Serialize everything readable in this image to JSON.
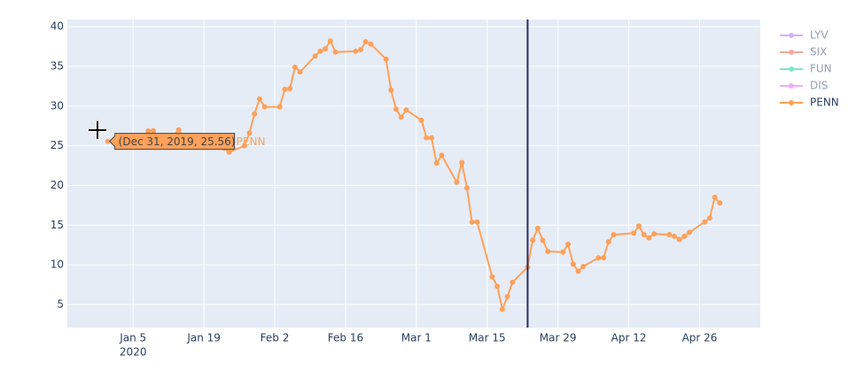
{
  "chart_data": {
    "type": "line",
    "x": [
      "2019-12-31",
      "2020-01-02",
      "2020-01-03",
      "2020-01-06",
      "2020-01-07",
      "2020-01-08",
      "2020-01-09",
      "2020-01-10",
      "2020-01-13",
      "2020-01-14",
      "2020-01-15",
      "2020-01-16",
      "2020-01-17",
      "2020-01-21",
      "2020-01-22",
      "2020-01-23",
      "2020-01-24",
      "2020-01-27",
      "2020-01-28",
      "2020-01-29",
      "2020-01-30",
      "2020-01-31",
      "2020-02-03",
      "2020-02-04",
      "2020-02-05",
      "2020-02-06",
      "2020-02-07",
      "2020-02-10",
      "2020-02-11",
      "2020-02-12",
      "2020-02-13",
      "2020-02-14",
      "2020-02-18",
      "2020-02-19",
      "2020-02-20",
      "2020-02-21",
      "2020-02-24",
      "2020-02-25",
      "2020-02-26",
      "2020-02-27",
      "2020-02-28",
      "2020-03-02",
      "2020-03-03",
      "2020-03-04",
      "2020-03-05",
      "2020-03-06",
      "2020-03-09",
      "2020-03-10",
      "2020-03-11",
      "2020-03-12",
      "2020-03-13",
      "2020-03-16",
      "2020-03-17",
      "2020-03-18",
      "2020-03-19",
      "2020-03-20",
      "2020-03-23",
      "2020-03-24",
      "2020-03-25",
      "2020-03-26",
      "2020-03-27",
      "2020-03-30",
      "2020-03-31",
      "2020-04-01",
      "2020-04-02",
      "2020-04-03",
      "2020-04-06",
      "2020-04-07",
      "2020-04-08",
      "2020-04-09",
      "2020-04-13",
      "2020-04-14",
      "2020-04-15",
      "2020-04-16",
      "2020-04-17",
      "2020-04-20",
      "2020-04-21",
      "2020-04-22",
      "2020-04-23",
      "2020-04-24",
      "2020-04-27",
      "2020-04-28",
      "2020-04-29",
      "2020-04-30"
    ],
    "series": [
      {
        "name": "LYV",
        "color": "#AB63FA",
        "visible": "legendonly"
      },
      {
        "name": "SIX",
        "color": "#EF553B",
        "visible": "legendonly"
      },
      {
        "name": "FUN",
        "color": "#00CC96",
        "visible": "legendonly"
      },
      {
        "name": "DIS",
        "color": "#D662FA",
        "visible": "legendonly"
      },
      {
        "name": "PENN",
        "color": "#FFA15A",
        "visible": true,
        "values": [
          25.56,
          25.9,
          25.4,
          25.8,
          26.2,
          26.85,
          26.9,
          26.0,
          26.3,
          27.0,
          26.0,
          25.7,
          25.4,
          25.0,
          24.9,
          24.7,
          24.2,
          25.0,
          26.6,
          29.0,
          30.9,
          29.9,
          29.9,
          32.1,
          32.2,
          34.9,
          34.3,
          36.3,
          36.9,
          37.2,
          38.2,
          36.8,
          36.9,
          37.1,
          38.1,
          37.8,
          35.9,
          32.0,
          29.6,
          28.6,
          29.5,
          28.2,
          26.0,
          26.0,
          22.8,
          23.8,
          20.4,
          22.9,
          19.7,
          15.4,
          15.4,
          8.5,
          7.3,
          4.4,
          6.0,
          7.8,
          9.7,
          13.1,
          14.6,
          13.1,
          11.7,
          11.6,
          12.6,
          10.1,
          9.2,
          9.8,
          10.9,
          10.9,
          12.9,
          13.8,
          14.0,
          14.9,
          13.8,
          13.4,
          13.9,
          13.8,
          13.6,
          13.2,
          13.6,
          14.1,
          15.4,
          15.9,
          18.5,
          17.8
        ]
      }
    ],
    "xlim": [
      "2019-12-23",
      "2020-05-08"
    ],
    "xticks": [
      {
        "value": "2020-01-05",
        "label": "Jan 5"
      },
      {
        "value": "2020-01-19",
        "label": "Jan 19"
      },
      {
        "value": "2020-02-02",
        "label": "Feb 2"
      },
      {
        "value": "2020-02-16",
        "label": "Feb 16"
      },
      {
        "value": "2020-03-01",
        "label": "Mar 1"
      },
      {
        "value": "2020-03-15",
        "label": "Mar 15"
      },
      {
        "value": "2020-03-29",
        "label": "Mar 29"
      },
      {
        "value": "2020-04-12",
        "label": "Apr 12"
      },
      {
        "value": "2020-04-26",
        "label": "Apr 26"
      }
    ],
    "x_year_label": "2020",
    "ylim": [
      2.1,
      40.9
    ],
    "yticks": [
      5,
      10,
      15,
      20,
      25,
      30,
      35,
      40
    ],
    "grid": true,
    "vline_x": "2020-03-23",
    "hover_text": "(Dec 31, 2019, 25.56)",
    "legend": "right"
  }
}
